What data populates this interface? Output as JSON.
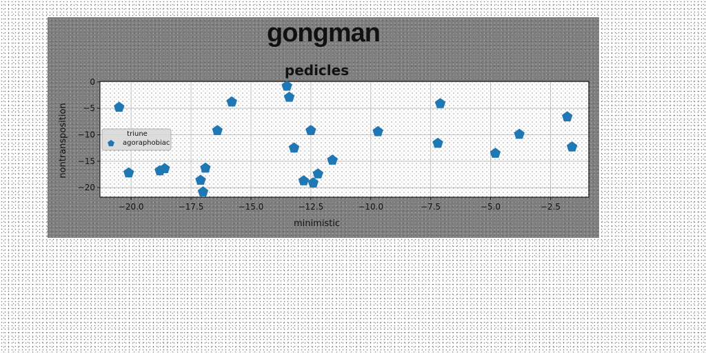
{
  "figure": {
    "suptitle": "gongman"
  },
  "chart_data": {
    "type": "scatter",
    "title": "pedicles",
    "xlabel": "minimistic",
    "ylabel": "nontransposition",
    "xlim": [
      -21.3,
      -0.9
    ],
    "ylim": [
      -21.8,
      0.1
    ],
    "xticks": [
      -20.0,
      -17.5,
      -15.0,
      -12.5,
      -10.0,
      -7.5,
      -5.0,
      -2.5
    ],
    "xtick_labels": [
      "−20.0",
      "−17.5",
      "−15.0",
      "−12.5",
      "−10.0",
      "−7.5",
      "−5.0",
      "−2.5"
    ],
    "yticks": [
      0,
      -5,
      -10,
      -15,
      -20
    ],
    "ytick_labels": [
      "0",
      "−5",
      "−10",
      "−15",
      "−20"
    ],
    "grid": true,
    "legend": {
      "position": "center-left",
      "entries": [
        "triune",
        "agoraphobiac"
      ]
    },
    "marker": "pentagon",
    "color": "#1f77b4",
    "series": [
      {
        "name": "triune agoraphobiac",
        "x": [
          -20.5,
          -20.1,
          -18.8,
          -18.6,
          -17.1,
          -16.9,
          -17.0,
          -16.4,
          -15.8,
          -13.5,
          -13.4,
          -13.2,
          -12.8,
          -12.5,
          -12.4,
          -12.2,
          -11.6,
          -9.7,
          -7.2,
          -7.1,
          -4.8,
          -3.8,
          -1.8,
          -1.6
        ],
        "y": [
          -4.8,
          -17.2,
          -16.8,
          -16.4,
          -18.6,
          -16.3,
          -20.8,
          -9.2,
          -3.8,
          -0.8,
          -2.9,
          -12.5,
          -18.7,
          -9.2,
          -19.1,
          -17.4,
          -14.8,
          -9.4,
          -11.6,
          -4.1,
          -13.5,
          -9.9,
          -6.6,
          -12.3
        ]
      }
    ]
  }
}
